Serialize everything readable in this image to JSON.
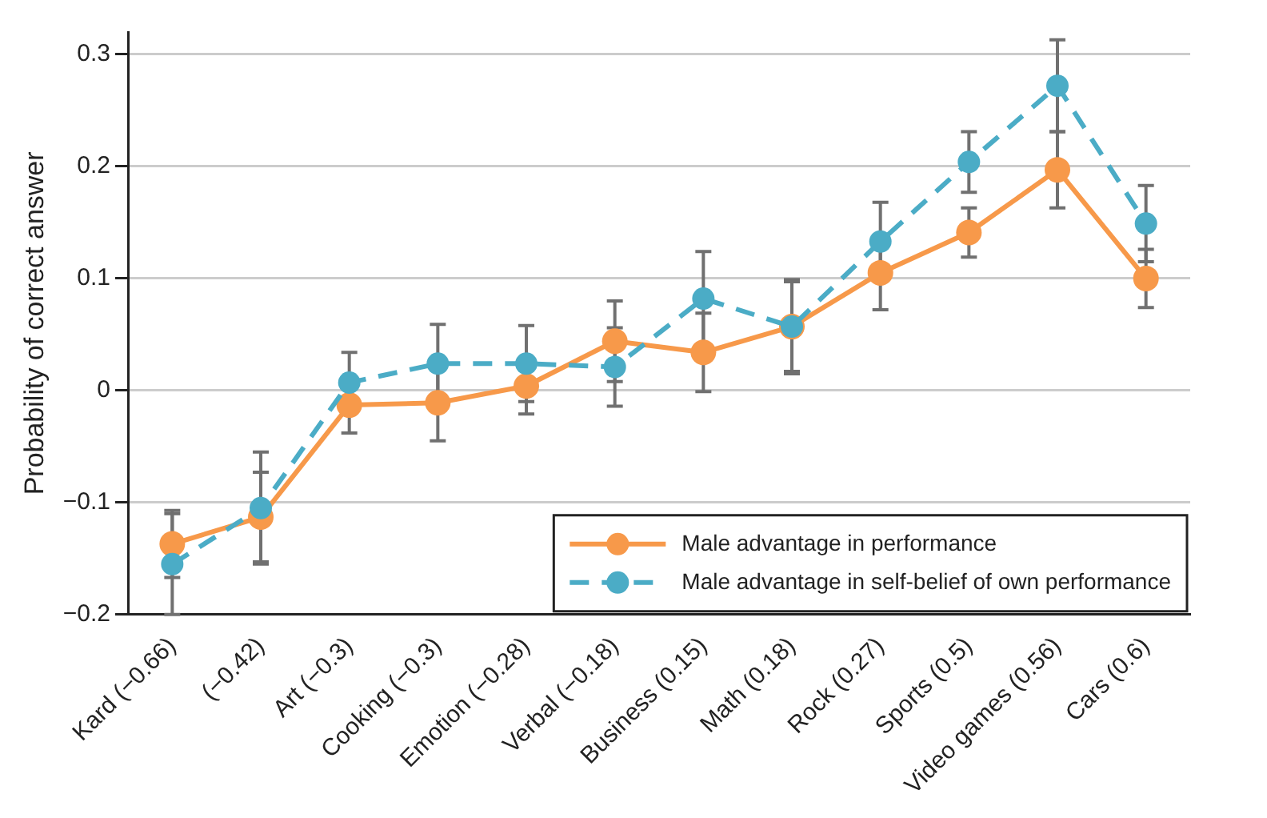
{
  "chart_data": {
    "type": "line",
    "ylabel": "Probability of correct answer",
    "categories": [
      "Kard (−0.66)",
      "(−0.42)",
      "Art (−0.3)",
      "Cooking (−0.3)",
      "Emotion (−0.28)",
      "Verbal (−0.18)",
      "Business (0.15)",
      "Math (0.18)",
      "Rock (0.27)",
      "Sports (0.5)",
      "Video games (0.56)",
      "Cars (0.6)"
    ],
    "series": [
      {
        "name": "Male advantage in performance",
        "color": "#f7994a",
        "line_style": "solid",
        "values": [
          -0.137,
          -0.113,
          -0.013,
          -0.011,
          0.004,
          0.044,
          0.034,
          0.057,
          0.105,
          0.141,
          0.197,
          0.1
        ],
        "errors": [
          0.03,
          0.04,
          0.025,
          0.034,
          0.025,
          0.036,
          0.035,
          0.04,
          0.033,
          0.022,
          0.034,
          0.026
        ]
      },
      {
        "name": "Male advantage in self-belief of own performance",
        "color": "#4bacc6",
        "line_style": "dashed",
        "values": [
          -0.155,
          -0.105,
          0.007,
          0.024,
          0.024,
          0.021,
          0.082,
          0.057,
          0.133,
          0.204,
          0.272,
          0.149
        ],
        "errors": [
          0.045,
          0.05,
          0.027,
          0.035,
          0.034,
          0.035,
          0.042,
          0.042,
          0.035,
          0.027,
          0.041,
          0.034
        ]
      }
    ],
    "ylim": [
      -0.2,
      0.32
    ],
    "yticks": [
      {
        "value": -0.2,
        "label": "−0.2"
      },
      {
        "value": -0.1,
        "label": "−0.1"
      },
      0,
      0.1,
      0.2,
      0.3
    ],
    "grid": "y",
    "legend": "bottom right",
    "marker": "circle"
  }
}
